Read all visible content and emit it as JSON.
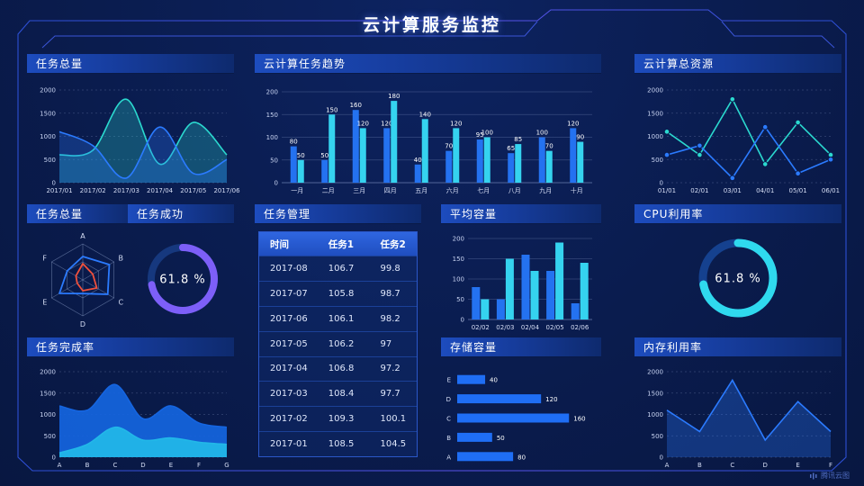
{
  "page": {
    "title": "云计算服务监控",
    "watermark": "腾讯云图"
  },
  "colors": {
    "background": "#0a1c4e",
    "frame": "#2e52d8",
    "accent_blue": "#2472f0",
    "accent_cyan": "#35d3ef",
    "accent_teal": "#2bd9cf",
    "accent_purple": "#7d5ff8",
    "accent_red": "#f0503c",
    "table_header": "#2a5ed8"
  },
  "panels": {
    "tasks_total": {
      "title": "任务总量"
    },
    "task_trend": {
      "title": "云计算任务趋势"
    },
    "cloud_resources": {
      "title": "云计算总资源"
    },
    "tasks_radar": {
      "title": "任务总量"
    },
    "task_success": {
      "title": "任务成功"
    },
    "task_table": {
      "title": "任务管理"
    },
    "avg_capacity": {
      "title": "平均容量"
    },
    "cpu": {
      "title": "CPU利用率"
    },
    "completion": {
      "title": "任务完成率"
    },
    "storage": {
      "title": "存储容量"
    },
    "memory": {
      "title": "内存利用率"
    }
  },
  "table": {
    "columns": [
      "时间",
      "任务1",
      "任务2"
    ],
    "rows": [
      [
        "2017-08",
        "106.7",
        "99.8"
      ],
      [
        "2017-07",
        "105.8",
        "98.7"
      ],
      [
        "2017-06",
        "106.1",
        "98.2"
      ],
      [
        "2017-05",
        "106.2",
        "97"
      ],
      [
        "2017-04",
        "106.8",
        "97.2"
      ],
      [
        "2017-03",
        "108.4",
        "97.7"
      ],
      [
        "2017-02",
        "109.3",
        "100.1"
      ],
      [
        "2017-01",
        "108.5",
        "104.5"
      ]
    ]
  },
  "chart_data": {
    "tasks_total": {
      "type": "area",
      "smooth": true,
      "grid": "dashed",
      "legend": "none",
      "categories": [
        "2017/01",
        "2017/02",
        "2017/03",
        "2017/04",
        "2017/05",
        "2017/06"
      ],
      "yticks": [
        0,
        500,
        1000,
        1500,
        2000
      ],
      "ylim": [
        0,
        2000
      ],
      "series": [
        {
          "name": "teal",
          "color": "#2bd9cf",
          "values": [
            600,
            700,
            1800,
            400,
            1300,
            600
          ]
        },
        {
          "name": "blue",
          "color": "#2b7bff",
          "values": [
            1100,
            800,
            100,
            1200,
            200,
            500
          ]
        }
      ]
    },
    "task_trend": {
      "type": "bar",
      "value_labels": true,
      "grid": "solid",
      "legend": "none",
      "categories": [
        "一月",
        "二月",
        "三月",
        "四月",
        "五月",
        "六月",
        "七月",
        "八月",
        "九月",
        "十月"
      ],
      "yticks": [
        0,
        50,
        100,
        150,
        200
      ],
      "ylim": [
        0,
        200
      ],
      "series": [
        {
          "name": "blue",
          "color": "#2472f0",
          "values": [
            80,
            50,
            160,
            120,
            40,
            70,
            95,
            65,
            100,
            120
          ]
        },
        {
          "name": "cyan",
          "color": "#35d3ef",
          "values": [
            50,
            150,
            120,
            180,
            140,
            120,
            100,
            85,
            70,
            90
          ]
        }
      ]
    },
    "cloud_resources": {
      "type": "line",
      "markers": true,
      "grid": "dashed",
      "legend": "none",
      "categories": [
        "01/01",
        "02/01",
        "03/01",
        "04/01",
        "05/01",
        "06/01"
      ],
      "yticks": [
        0,
        500,
        1000,
        1500,
        2000
      ],
      "ylim": [
        0,
        2000
      ],
      "series": [
        {
          "name": "teal",
          "color": "#2bd9cf",
          "values": [
            1100,
            600,
            1800,
            400,
            1300,
            600
          ]
        },
        {
          "name": "blue",
          "color": "#2b7bff",
          "values": [
            600,
            800,
            100,
            1200,
            200,
            500
          ]
        }
      ]
    },
    "tasks_radar": {
      "type": "radar",
      "indicators": [
        "A",
        "B",
        "C",
        "D",
        "E",
        "F"
      ],
      "max": 100,
      "series": [
        {
          "name": "blue",
          "color": "#2b7bff",
          "values": [
            65,
            85,
            80,
            38,
            75,
            50
          ]
        },
        {
          "name": "red",
          "color": "#f0503c",
          "values": [
            45,
            32,
            45,
            30,
            18,
            22
          ]
        }
      ]
    },
    "task_success": {
      "type": "donut",
      "value": 61.8,
      "display": "61.8 %",
      "arc_fraction": 0.72,
      "color": "#7d5ff8",
      "track": "#16387e"
    },
    "avg_capacity": {
      "type": "bar",
      "value_labels": false,
      "grid": "solid",
      "legend": "none",
      "categories": [
        "02/02",
        "02/03",
        "02/04",
        "02/05",
        "02/06"
      ],
      "yticks": [
        0,
        50,
        100,
        150,
        200
      ],
      "ylim": [
        0,
        200
      ],
      "series": [
        {
          "name": "blue",
          "color": "#2472f0",
          "values": [
            80,
            50,
            160,
            120,
            40
          ]
        },
        {
          "name": "cyan",
          "color": "#35d3ef",
          "values": [
            50,
            150,
            120,
            190,
            140
          ]
        }
      ]
    },
    "cpu": {
      "type": "donut",
      "value": 61.8,
      "display": "61.8 %",
      "arc_fraction": 0.72,
      "color": "#2fd9ee",
      "track": "#15418f"
    },
    "completion": {
      "type": "area",
      "smooth": true,
      "grid": "dashed",
      "solid_fill": true,
      "legend": "none",
      "categories": [
        "A",
        "B",
        "C",
        "D",
        "E",
        "F",
        "G"
      ],
      "yticks": [
        0,
        500,
        1000,
        1500,
        2000
      ],
      "ylim": [
        0,
        2000
      ],
      "series": [
        {
          "name": "blue",
          "color": "#1565e0",
          "values": [
            1200,
            1100,
            1700,
            900,
            1200,
            800,
            700
          ]
        },
        {
          "name": "cyan",
          "color": "#22b8e8",
          "values": [
            100,
            300,
            700,
            400,
            450,
            350,
            300
          ]
        }
      ]
    },
    "storage": {
      "type": "hbar",
      "color": "#1f6ef5",
      "xmax": 170,
      "categories": [
        "E",
        "D",
        "C",
        "B",
        "A"
      ],
      "values": [
        40,
        120,
        160,
        50,
        80
      ]
    },
    "memory": {
      "type": "line",
      "markers": false,
      "area": true,
      "grid": "dashed",
      "legend": "none",
      "categories": [
        "A",
        "B",
        "C",
        "D",
        "E",
        "F"
      ],
      "yticks": [
        0,
        500,
        1000,
        1500,
        2000
      ],
      "ylim": [
        0,
        2000
      ],
      "series": [
        {
          "name": "blue",
          "color": "#2b7bff",
          "values": [
            1100,
            600,
            1800,
            400,
            1300,
            600
          ]
        }
      ]
    }
  }
}
